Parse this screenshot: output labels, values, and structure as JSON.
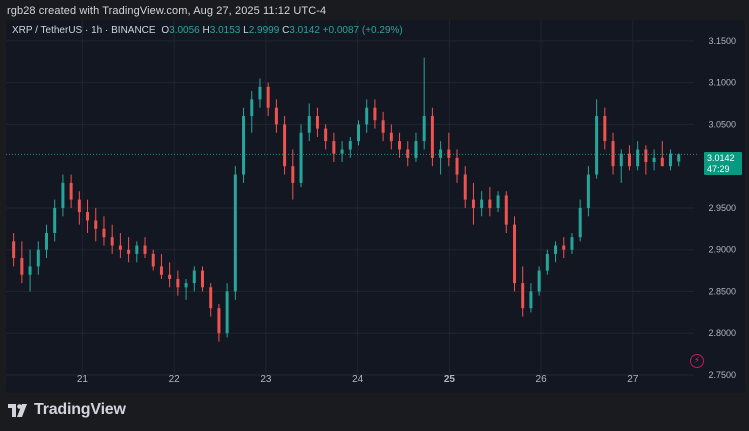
{
  "caption": "rgb28 created with TradingView.com, Aug 27, 2025 11:12 UTC-4",
  "legend": {
    "symbol": "XRP / TetherUS · 1h · BINANCE",
    "o_label": "O",
    "o_value": "3.0056",
    "h_label": "H",
    "h_value": "3.0153",
    "l_label": "L",
    "l_value": "2.9999",
    "c_label": "C",
    "c_value": "3.0142",
    "change": "+0.0087 (+0.29%)"
  },
  "last_price": {
    "value": "3.0142",
    "countdown": "47:29",
    "price": 3.0142
  },
  "brand": "TradingView",
  "colors": {
    "background": "#131722",
    "up": "#26a69a",
    "down": "#ef5350",
    "grid": "#1f2430",
    "text": "#d1d4dc"
  },
  "chart_data": {
    "type": "candlestick",
    "y_ticks": [
      "3.1500",
      "3.1000",
      "3.0500",
      "2.9500",
      "2.9000",
      "2.8500",
      "2.8000",
      "2.7500"
    ],
    "ylim": [
      2.75,
      3.175
    ],
    "x_ticks": [
      {
        "label": "21",
        "t": 18
      },
      {
        "label": "22",
        "t": 42
      },
      {
        "label": "23",
        "t": 66
      },
      {
        "label": "24",
        "t": 90
      },
      {
        "label": "25",
        "t": 114,
        "bold": true
      },
      {
        "label": "26",
        "t": 138
      },
      {
        "label": "27",
        "t": 162
      }
    ],
    "xlim": [
      -2,
      178
    ],
    "grid": true,
    "interval": "1h",
    "candles_ohlc": [
      [
        2.91,
        2.92,
        2.88,
        2.89
      ],
      [
        2.89,
        2.91,
        2.86,
        2.87
      ],
      [
        2.87,
        2.9,
        2.85,
        2.88
      ],
      [
        2.88,
        2.91,
        2.87,
        2.9
      ],
      [
        2.9,
        2.93,
        2.89,
        2.92
      ],
      [
        2.92,
        2.96,
        2.91,
        2.95
      ],
      [
        2.95,
        2.99,
        2.94,
        2.98
      ],
      [
        2.98,
        2.99,
        2.95,
        2.96
      ],
      [
        2.96,
        2.97,
        2.93,
        2.945
      ],
      [
        2.945,
        2.96,
        2.92,
        2.935
      ],
      [
        2.935,
        2.95,
        2.91,
        2.925
      ],
      [
        2.925,
        2.94,
        2.905,
        2.915
      ],
      [
        2.915,
        2.93,
        2.895,
        2.905
      ],
      [
        2.905,
        2.92,
        2.89,
        2.9
      ],
      [
        2.9,
        2.915,
        2.885,
        2.895
      ],
      [
        2.895,
        2.91,
        2.885,
        2.905
      ],
      [
        2.905,
        2.915,
        2.89,
        2.895
      ],
      [
        2.895,
        2.9,
        2.875,
        2.88
      ],
      [
        2.88,
        2.895,
        2.865,
        2.87
      ],
      [
        2.87,
        2.885,
        2.855,
        2.865
      ],
      [
        2.865,
        2.875,
        2.845,
        2.855
      ],
      [
        2.855,
        2.865,
        2.84,
        2.86
      ],
      [
        2.86,
        2.88,
        2.85,
        2.875
      ],
      [
        2.875,
        2.88,
        2.85,
        2.855
      ],
      [
        2.855,
        2.86,
        2.82,
        2.83
      ],
      [
        2.83,
        2.835,
        2.79,
        2.8
      ],
      [
        2.8,
        2.86,
        2.795,
        2.85
      ],
      [
        2.85,
        3.0,
        2.84,
        2.99
      ],
      [
        2.99,
        3.07,
        2.98,
        3.06
      ],
      [
        3.06,
        3.09,
        3.04,
        3.08
      ],
      [
        3.08,
        3.105,
        3.07,
        3.095
      ],
      [
        3.095,
        3.1,
        3.06,
        3.07
      ],
      [
        3.07,
        3.08,
        3.04,
        3.05
      ],
      [
        3.05,
        3.06,
        2.99,
        3.0
      ],
      [
        3.0,
        3.02,
        2.96,
        2.98
      ],
      [
        2.98,
        3.05,
        2.975,
        3.04
      ],
      [
        3.04,
        3.075,
        3.03,
        3.06
      ],
      [
        3.06,
        3.07,
        3.035,
        3.045
      ],
      [
        3.045,
        3.05,
        3.02,
        3.03
      ],
      [
        3.03,
        3.04,
        3.005,
        3.015
      ],
      [
        3.015,
        3.03,
        3.005,
        3.02
      ],
      [
        3.02,
        3.035,
        3.01,
        3.03
      ],
      [
        3.03,
        3.055,
        3.025,
        3.05
      ],
      [
        3.05,
        3.08,
        3.04,
        3.07
      ],
      [
        3.07,
        3.08,
        3.045,
        3.055
      ],
      [
        3.055,
        3.065,
        3.03,
        3.04
      ],
      [
        3.04,
        3.05,
        3.02,
        3.03
      ],
      [
        3.03,
        3.04,
        3.01,
        3.02
      ],
      [
        3.02,
        3.03,
        3.0,
        3.01
      ],
      [
        3.01,
        3.04,
        3.005,
        3.03
      ],
      [
        3.03,
        3.13,
        3.02,
        3.06
      ],
      [
        3.06,
        3.07,
        3.0,
        3.01
      ],
      [
        3.01,
        3.03,
        2.99,
        3.02
      ],
      [
        3.02,
        3.04,
        3.0,
        3.01
      ],
      [
        3.01,
        3.02,
        2.98,
        2.99
      ],
      [
        2.99,
        3.0,
        2.95,
        2.96
      ],
      [
        2.96,
        2.98,
        2.93,
        2.95
      ],
      [
        2.95,
        2.97,
        2.94,
        2.96
      ],
      [
        2.96,
        2.975,
        2.94,
        2.95
      ],
      [
        2.95,
        2.97,
        2.945,
        2.965
      ],
      [
        2.965,
        2.97,
        2.92,
        2.93
      ],
      [
        2.93,
        2.94,
        2.85,
        2.86
      ],
      [
        2.86,
        2.88,
        2.82,
        2.83
      ],
      [
        2.83,
        2.86,
        2.825,
        2.85
      ],
      [
        2.85,
        2.88,
        2.845,
        2.875
      ],
      [
        2.875,
        2.9,
        2.87,
        2.895
      ],
      [
        2.895,
        2.91,
        2.885,
        2.905
      ],
      [
        2.905,
        2.915,
        2.89,
        2.9
      ],
      [
        2.9,
        2.92,
        2.895,
        2.915
      ],
      [
        2.915,
        2.96,
        2.91,
        2.95
      ],
      [
        2.95,
        3.0,
        2.94,
        2.99
      ],
      [
        2.99,
        3.08,
        2.985,
        3.06
      ],
      [
        3.06,
        3.07,
        3.02,
        3.03
      ],
      [
        3.03,
        3.04,
        2.99,
        3.0
      ],
      [
        3.0,
        3.02,
        2.98,
        3.015
      ],
      [
        3.015,
        3.025,
        2.995,
        3.0
      ],
      [
        3.0,
        3.03,
        2.995,
        3.02
      ],
      [
        3.02,
        3.025,
        2.99,
        3.005
      ],
      [
        3.005,
        3.02,
        2.995,
        3.01
      ],
      [
        3.01,
        3.03,
        3.0,
        3.0
      ],
      [
        3.0,
        3.02,
        2.995,
        3.015
      ],
      [
        3.0056,
        3.0153,
        2.9999,
        3.0142
      ]
    ]
  }
}
